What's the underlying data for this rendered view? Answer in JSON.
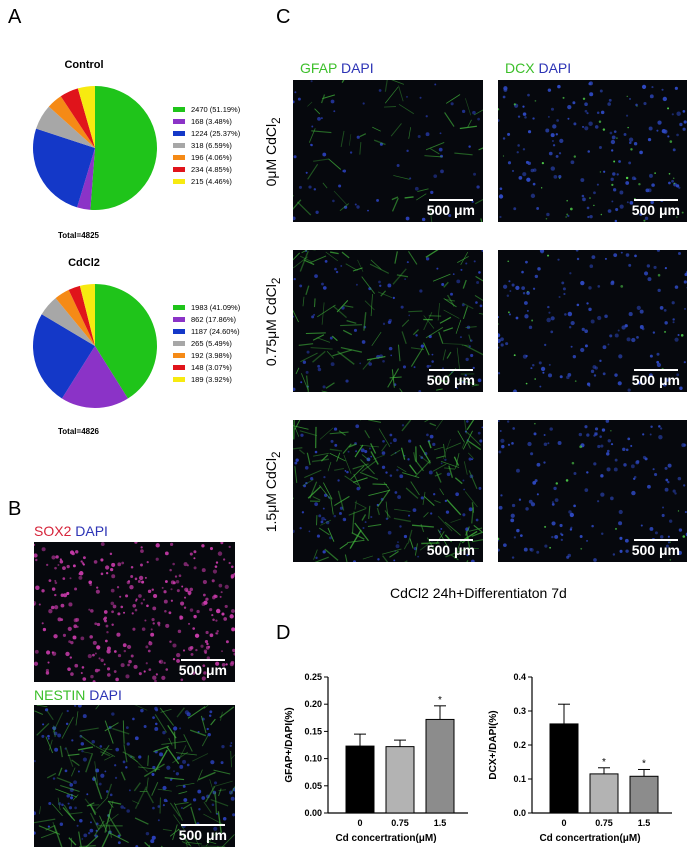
{
  "panels": {
    "a": "A",
    "b": "B",
    "c": "C",
    "d": "D"
  },
  "pies": [
    {
      "title": "Control",
      "total": "Total=4825",
      "slices": [
        {
          "value": 2470,
          "label": "2470 (51.19%)",
          "color": "#1fc41a"
        },
        {
          "value": 168,
          "label": "168 (3.48%)",
          "color": "#8b33c7"
        },
        {
          "value": 1224,
          "label": "1224 (25.37%)",
          "color": "#1438c8"
        },
        {
          "value": 318,
          "label": "318 (6.59%)",
          "color": "#a7a7a7"
        },
        {
          "value": 196,
          "label": "196 (4.06%)",
          "color": "#f58a16"
        },
        {
          "value": 234,
          "label": "234 (4.85%)",
          "color": "#e0141b"
        },
        {
          "value": 215,
          "label": "215 (4.46%)",
          "color": "#f7ea10"
        }
      ]
    },
    {
      "title": "CdCl2",
      "total": "Total=4826",
      "slices": [
        {
          "value": 1983,
          "label": "1983 (41.09%)",
          "color": "#1fc41a"
        },
        {
          "value": 862,
          "label": "862 (17.86%)",
          "color": "#8b33c7"
        },
        {
          "value": 1187,
          "label": "1187 (24.60%)",
          "color": "#1438c8"
        },
        {
          "value": 265,
          "label": "265 (5.49%)",
          "color": "#a7a7a7"
        },
        {
          "value": 192,
          "label": "192 (3.98%)",
          "color": "#f58a16"
        },
        {
          "value": 148,
          "label": "148 (3.07%)",
          "color": "#e0141b"
        },
        {
          "value": 189,
          "label": "189 (3.92%)",
          "color": "#f7ea10"
        }
      ]
    }
  ],
  "panel_b": {
    "top_label_1": "SOX2",
    "top_label_2": "DAPI",
    "bottom_label_1": "NESTIN",
    "bottom_label_2": "DAPI",
    "scale": "500 μm"
  },
  "panel_c": {
    "col1_a": "GFAP",
    "col1_b": "DAPI",
    "col2_a": "DCX",
    "col2_b": "DAPI",
    "rows": [
      "0μM CdCl",
      "0.75μM CdCl",
      "1.5μM CdCl"
    ],
    "row_sub": "2",
    "scale": "500 μm",
    "caption": "CdCl2 24h+Differentiaton 7d"
  },
  "chart_data": [
    {
      "type": "bar",
      "ylabel": "GFAP+/DAPI(%)",
      "xlabel": "Cd concertration(μM)",
      "categories": [
        "0",
        "0.75",
        "1.5"
      ],
      "values": [
        0.123,
        0.122,
        0.172
      ],
      "errors": [
        0.022,
        0.012,
        0.025
      ],
      "significance": [
        "",
        "",
        "*"
      ],
      "colors": [
        "#000000",
        "#b3b3b3",
        "#8c8c8c"
      ],
      "ylim": [
        0,
        0.25
      ],
      "yticks": [
        "0.00",
        "0.05",
        "0.10",
        "0.15",
        "0.20",
        "0.25"
      ]
    },
    {
      "type": "bar",
      "ylabel": "DCX+/DAPI(%)",
      "xlabel": "Cd concertration(μM)",
      "categories": [
        "0",
        "0.75",
        "1.5"
      ],
      "values": [
        0.262,
        0.115,
        0.108
      ],
      "errors": [
        0.058,
        0.018,
        0.02
      ],
      "significance": [
        "",
        "*",
        "*"
      ],
      "colors": [
        "#000000",
        "#b3b3b3",
        "#8c8c8c"
      ],
      "ylim": [
        0,
        0.4
      ],
      "yticks": [
        "0.0",
        "0.1",
        "0.2",
        "0.3",
        "0.4"
      ]
    }
  ]
}
